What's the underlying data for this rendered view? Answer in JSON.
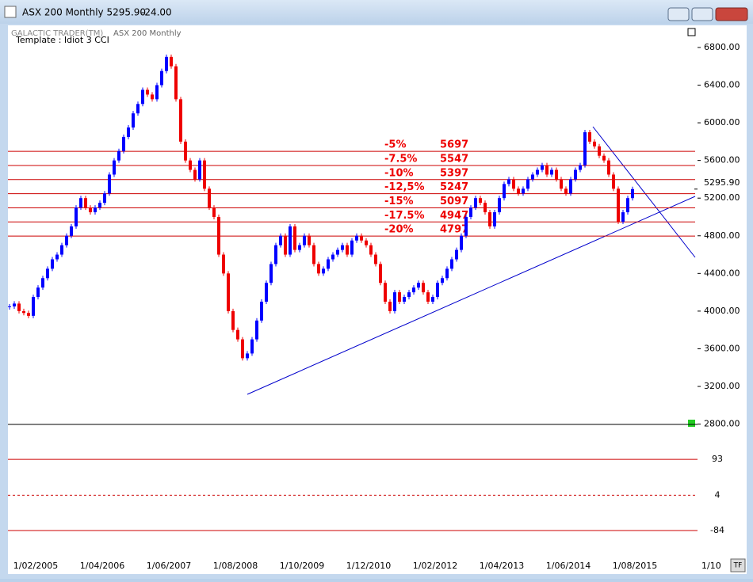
{
  "window": {
    "title": "ASX 200 Monthly 5295.90",
    "change": "-24.00"
  },
  "header": {
    "product": "GALACTIC TRADER(TM)",
    "chart_name": "ASX 200 Monthly",
    "template": "Template : Idiot 3 CCI"
  },
  "button": "TF",
  "chart_data": {
    "type": "candlestick",
    "close": [
      4050,
      4080,
      4000,
      3980,
      3950,
      4150,
      4250,
      4350,
      4450,
      4550,
      4600,
      4700,
      4800,
      4900,
      5100,
      5200,
      5100,
      5050,
      5100,
      5150,
      5250,
      5450,
      5600,
      5700,
      5850,
      5950,
      6100,
      6200,
      6350,
      6300,
      6250,
      6400,
      6550,
      6700,
      6600,
      6250,
      5800,
      5600,
      5500,
      5400,
      5600,
      5300,
      5100,
      5000,
      4600,
      4400,
      4000,
      3800,
      3700,
      3500,
      3550,
      3700,
      3900,
      4100,
      4300,
      4500,
      4700,
      4800,
      4600,
      4900,
      4650,
      4700,
      4800,
      4700,
      4500,
      4400,
      4450,
      4550,
      4600,
      4650,
      4700,
      4600,
      4750,
      4800,
      4750,
      4700,
      4600,
      4500,
      4300,
      4100,
      4000,
      4200,
      4100,
      4150,
      4200,
      4250,
      4300,
      4200,
      4100,
      4150,
      4300,
      4350,
      4450,
      4550,
      4650,
      4800,
      5000,
      5100,
      5200,
      5150,
      5050,
      4900,
      5050,
      5200,
      5350,
      5400,
      5300,
      5250,
      5300,
      5400,
      5450,
      5500,
      5550,
      5450,
      5500,
      5400,
      5300,
      5250,
      5400,
      5500,
      5550,
      5900,
      5800,
      5750,
      5650,
      5600,
      5450,
      5300,
      4950,
      5050,
      5200,
      5296
    ],
    "ylim": [
      2763,
      7035
    ],
    "yticks": [
      {
        "value": 6800,
        "label": "6800.00"
      },
      {
        "value": 6400,
        "label": "6400.00"
      },
      {
        "value": 6000,
        "label": "6000.00"
      },
      {
        "value": 5600,
        "label": "5600.00"
      },
      {
        "value": 5200,
        "label": "5200.00"
      },
      {
        "value": 4800,
        "label": "4800.00"
      },
      {
        "value": 4400,
        "label": "4400.00"
      },
      {
        "value": 4000,
        "label": "4000.00"
      },
      {
        "value": 3600,
        "label": "3600.00"
      },
      {
        "value": 3200,
        "label": "3200.00"
      },
      {
        "value": 2800,
        "label": "2800.00"
      }
    ],
    "last_price": {
      "value": 5295.9,
      "label": "5295.90"
    },
    "levels": [
      {
        "label": "-5%",
        "value": 5697
      },
      {
        "label": "-7.5%",
        "value": 5547
      },
      {
        "label": "-10%",
        "value": 5397
      },
      {
        "label": "-12,5%",
        "value": 5247
      },
      {
        "label": "-15%",
        "value": 5097
      },
      {
        "label": "-17.5%",
        "value": 4947
      },
      {
        "label": "-20%",
        "value": 4797
      }
    ],
    "x_labels": [
      "1/02/2005",
      "1/04/2006",
      "1/06/2007",
      "1/08/2008",
      "1/10/2009",
      "1/12/2010",
      "1/02/2012",
      "1/04/2013",
      "1/06/2014",
      "1/08/2015",
      "1/10"
    ],
    "indicator": {
      "ylim": [
        -143,
        180
      ],
      "yticks": [
        93,
        4,
        -84
      ]
    }
  }
}
